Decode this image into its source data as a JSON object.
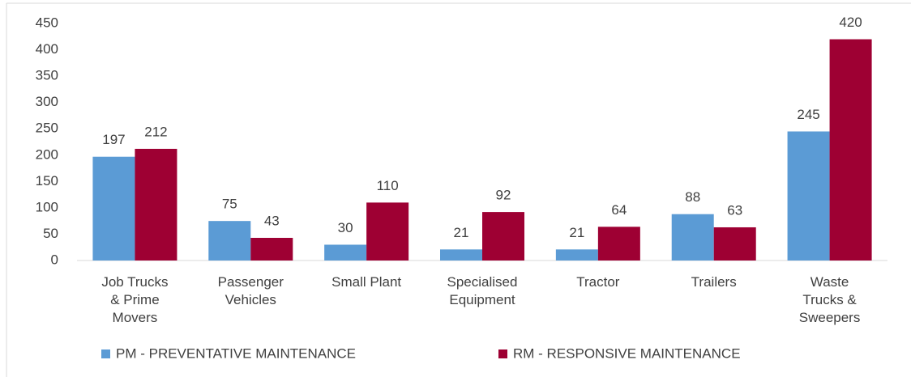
{
  "chart_data": {
    "type": "bar",
    "categories": [
      "Job Trucks & Prime Movers",
      "Passenger Vehicles",
      "Small Plant",
      "Specialised Equipment",
      "Tractor",
      "Trailers",
      "Waste Trucks & Sweepers"
    ],
    "series": [
      {
        "name": "PM - PREVENTATIVE MAINTENANCE",
        "color": "#5b9bd5",
        "values": [
          197,
          75,
          30,
          21,
          21,
          88,
          245
        ]
      },
      {
        "name": "RM - RESPONSIVE MAINTENANCE",
        "color": "#9e0033",
        "values": [
          212,
          43,
          110,
          92,
          64,
          63,
          420
        ]
      }
    ],
    "ylim": [
      0,
      450
    ],
    "yticks": [
      0,
      50,
      100,
      150,
      200,
      250,
      300,
      350,
      400,
      450
    ],
    "grid": false,
    "legend": "bottom"
  }
}
